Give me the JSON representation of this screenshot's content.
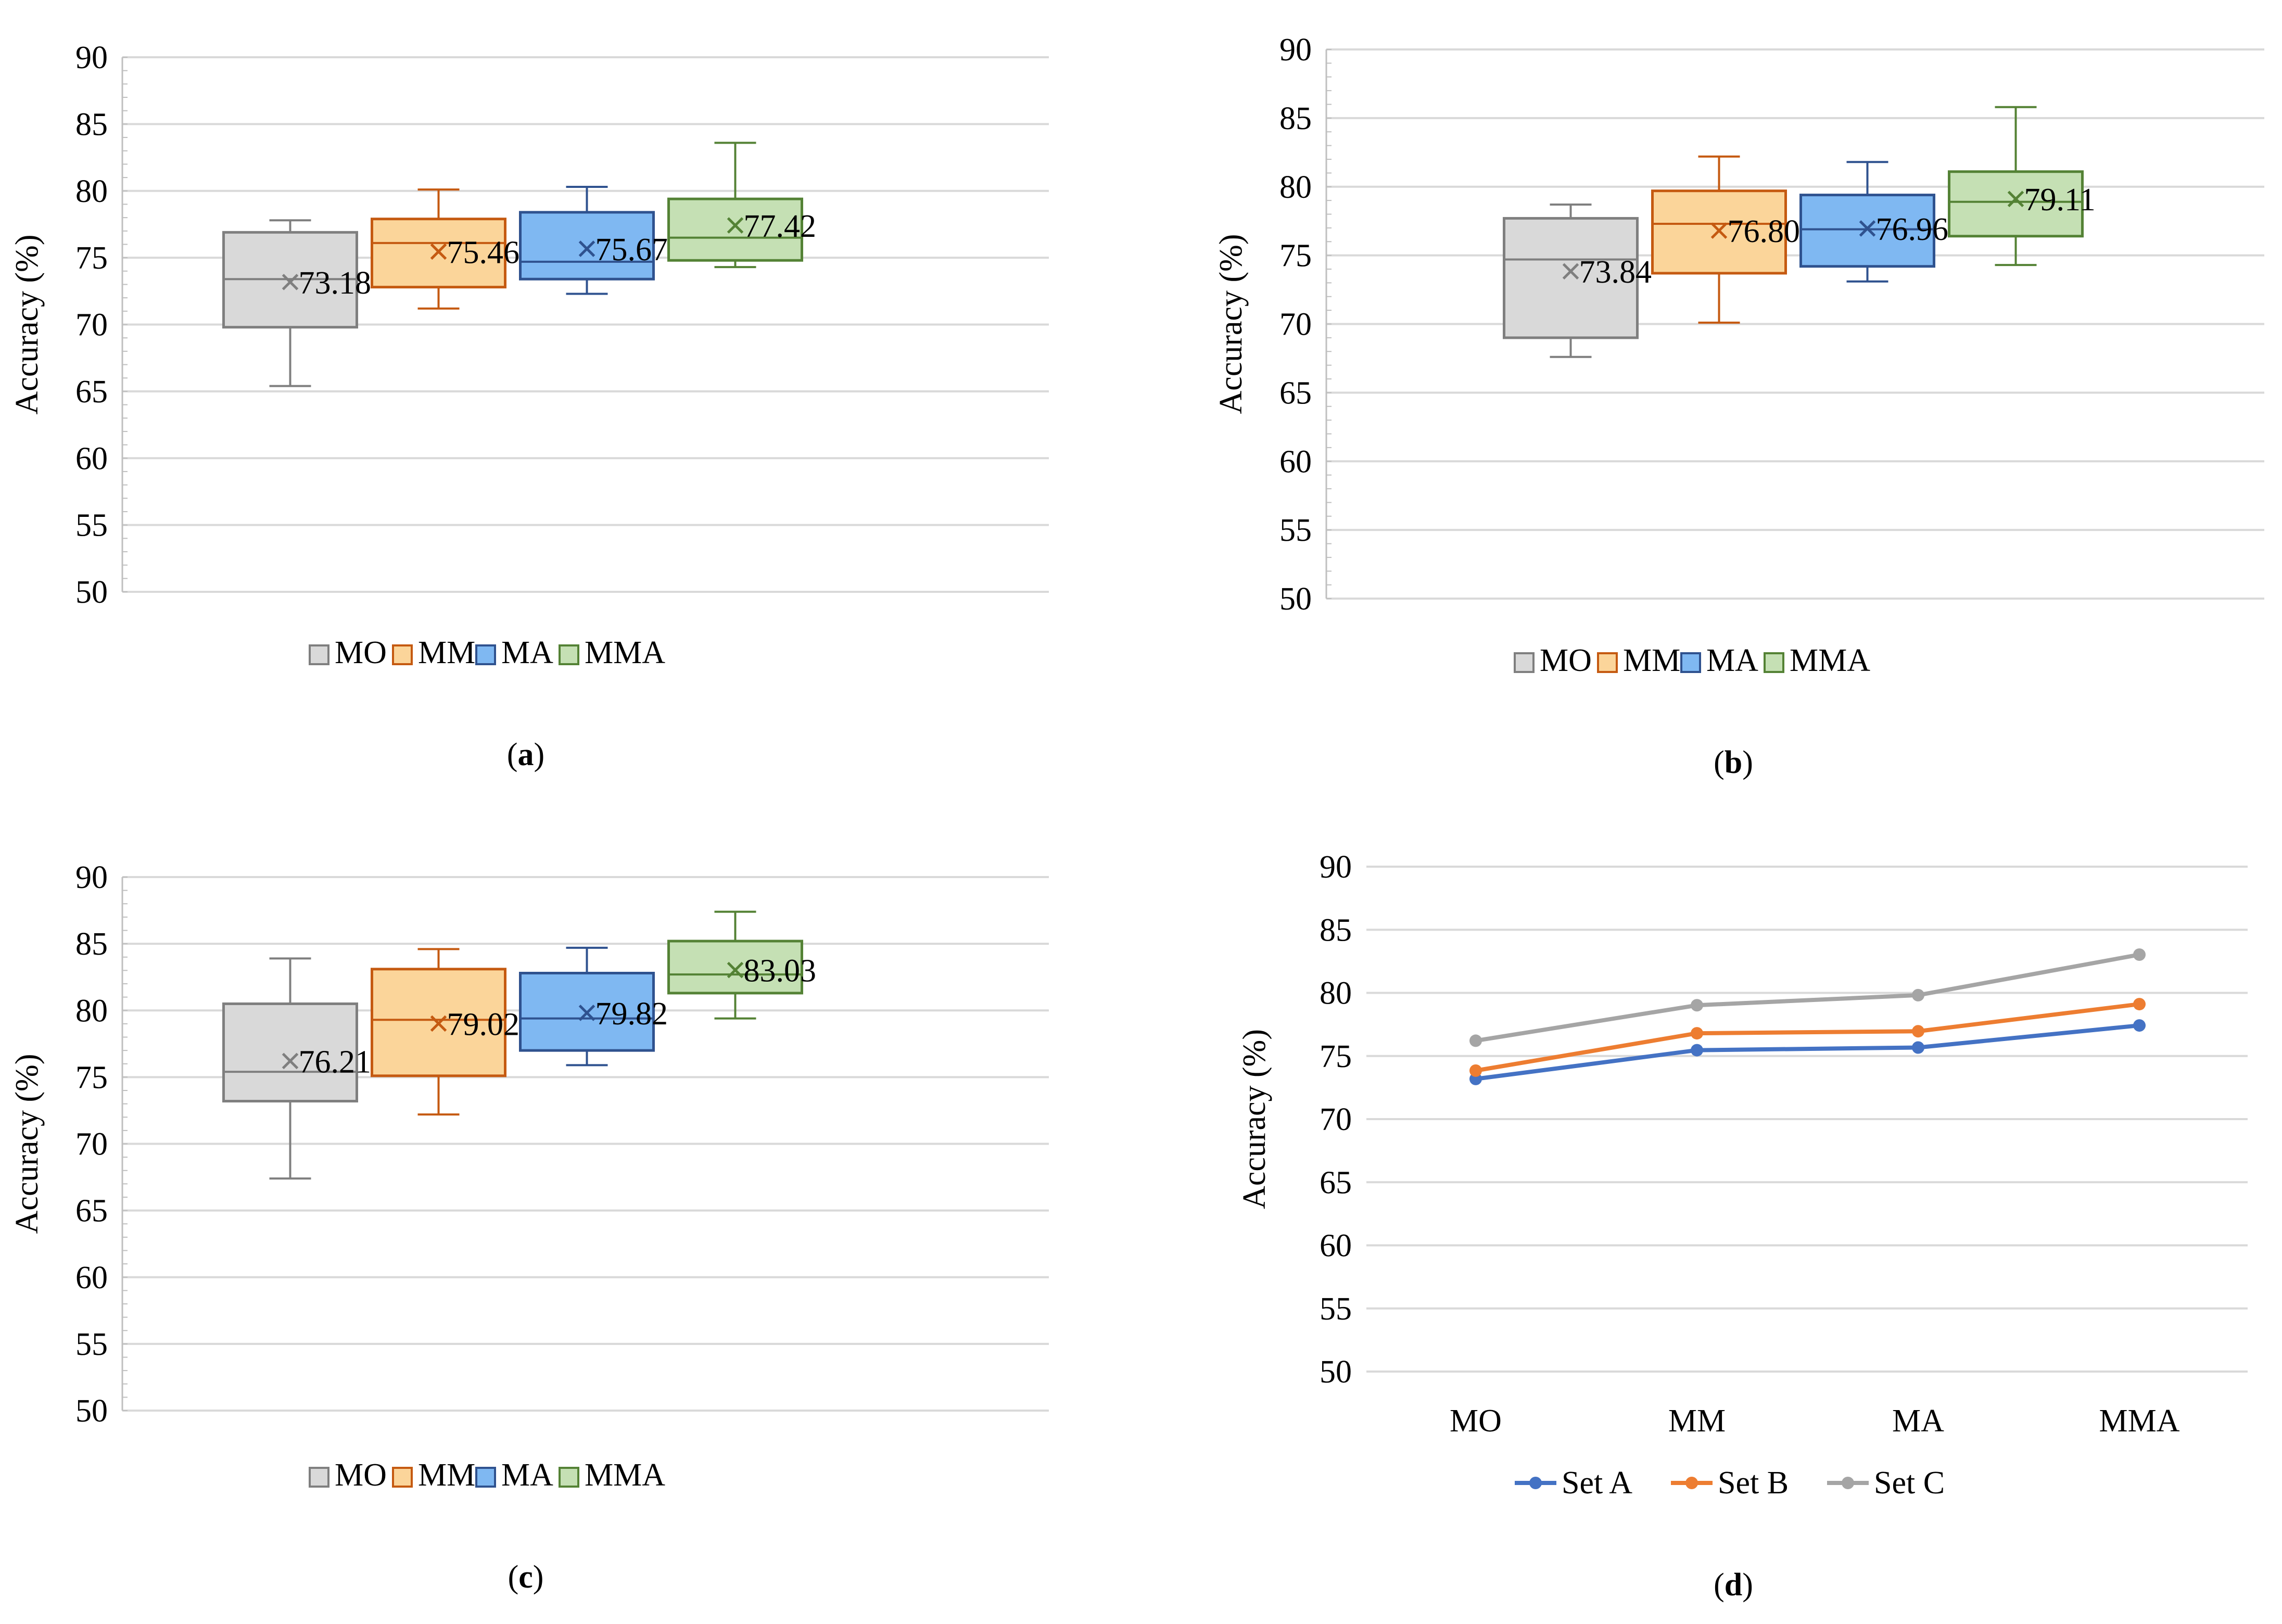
{
  "colors": {
    "grid": "#d9d9d9",
    "axis": "#bfbfbf",
    "text": "#000000",
    "MO": {
      "fill": "#d9d9d9",
      "stroke": "#7f7f7f"
    },
    "MM": {
      "fill": "#fbd59a",
      "stroke": "#c55a11"
    },
    "MA": {
      "fill": "#7fb8f2",
      "stroke": "#2f528f"
    },
    "MMA": {
      "fill": "#c5e0b4",
      "stroke": "#548235"
    },
    "Set A": "#4472c4",
    "Set B": "#ed7d31",
    "Set C": "#a5a5a5"
  },
  "chart_data": [
    {
      "panel": "a",
      "caption": "(a)",
      "type": "box",
      "ylabel": "Accuracy (%)",
      "ylim": [
        50,
        90
      ],
      "yticks": [
        50,
        55,
        60,
        65,
        70,
        75,
        80,
        85,
        90
      ],
      "legend": [
        "MO",
        "MM",
        "MA",
        "MMA"
      ],
      "boxes": [
        {
          "name": "MO",
          "min": 65.4,
          "q1": 69.8,
          "median": 73.4,
          "q3": 76.9,
          "max": 77.8,
          "mean": 73.18,
          "mean_label": "73.18"
        },
        {
          "name": "MM",
          "min": 71.2,
          "q1": 72.8,
          "median": 76.1,
          "q3": 77.9,
          "max": 80.1,
          "mean": 75.46,
          "mean_label": "75.46"
        },
        {
          "name": "MA",
          "min": 72.3,
          "q1": 73.4,
          "median": 74.7,
          "q3": 78.4,
          "max": 80.3,
          "mean": 75.67,
          "mean_label": "75.67"
        },
        {
          "name": "MMA",
          "min": 74.3,
          "q1": 74.8,
          "median": 76.5,
          "q3": 79.4,
          "max": 83.6,
          "mean": 77.42,
          "mean_label": "77.42"
        }
      ]
    },
    {
      "panel": "b",
      "caption": "(b)",
      "type": "box",
      "ylabel": "Accuracy (%)",
      "ylim": [
        50,
        90
      ],
      "yticks": [
        50,
        55,
        60,
        65,
        70,
        75,
        80,
        85,
        90
      ],
      "legend": [
        "MO",
        "MM",
        "MA",
        "MMA"
      ],
      "boxes": [
        {
          "name": "MO",
          "min": 67.6,
          "q1": 69.0,
          "median": 74.7,
          "q3": 77.7,
          "max": 78.7,
          "mean": 73.84,
          "mean_label": "73.84"
        },
        {
          "name": "MM",
          "min": 70.1,
          "q1": 73.7,
          "median": 77.3,
          "q3": 79.7,
          "max": 82.2,
          "mean": 76.8,
          "mean_label": "76.80"
        },
        {
          "name": "MA",
          "min": 73.1,
          "q1": 74.2,
          "median": 76.9,
          "q3": 79.4,
          "max": 81.8,
          "mean": 76.96,
          "mean_label": "76.96"
        },
        {
          "name": "MMA",
          "min": 74.3,
          "q1": 76.4,
          "median": 78.9,
          "q3": 81.1,
          "max": 85.8,
          "mean": 79.11,
          "mean_label": "79.11"
        }
      ]
    },
    {
      "panel": "c",
      "caption": "(c)",
      "type": "box",
      "ylabel": "Accuracy (%)",
      "ylim": [
        50,
        90
      ],
      "yticks": [
        50,
        55,
        60,
        65,
        70,
        75,
        80,
        85,
        90
      ],
      "legend": [
        "MO",
        "MM",
        "MA",
        "MMA"
      ],
      "boxes": [
        {
          "name": "MO",
          "min": 67.4,
          "q1": 73.2,
          "median": 75.4,
          "q3": 80.5,
          "max": 83.9,
          "mean": 76.21,
          "mean_label": "76.21"
        },
        {
          "name": "MM",
          "min": 72.2,
          "q1": 75.1,
          "median": 79.3,
          "q3": 83.1,
          "max": 84.6,
          "mean": 79.02,
          "mean_label": "79.02"
        },
        {
          "name": "MA",
          "min": 75.9,
          "q1": 77.0,
          "median": 79.4,
          "q3": 82.8,
          "max": 84.7,
          "mean": 79.82,
          "mean_label": "79.82"
        },
        {
          "name": "MMA",
          "min": 79.4,
          "q1": 81.3,
          "median": 82.7,
          "q3": 85.2,
          "max": 87.4,
          "mean": 83.03,
          "mean_label": "83.03"
        }
      ]
    },
    {
      "panel": "d",
      "caption": "(d)",
      "type": "line",
      "ylabel": "Accuracy (%)",
      "ylim": [
        50,
        90
      ],
      "yticks": [
        50,
        55,
        60,
        65,
        70,
        75,
        80,
        85,
        90
      ],
      "categories": [
        "MO",
        "MM",
        "MA",
        "MMA"
      ],
      "series": [
        {
          "name": "Set A",
          "values": [
            73.18,
            75.46,
            75.67,
            77.42
          ]
        },
        {
          "name": "Set B",
          "values": [
            73.84,
            76.8,
            76.96,
            79.11
          ]
        },
        {
          "name": "Set C",
          "values": [
            76.21,
            79.02,
            79.82,
            83.03
          ]
        }
      ]
    }
  ]
}
